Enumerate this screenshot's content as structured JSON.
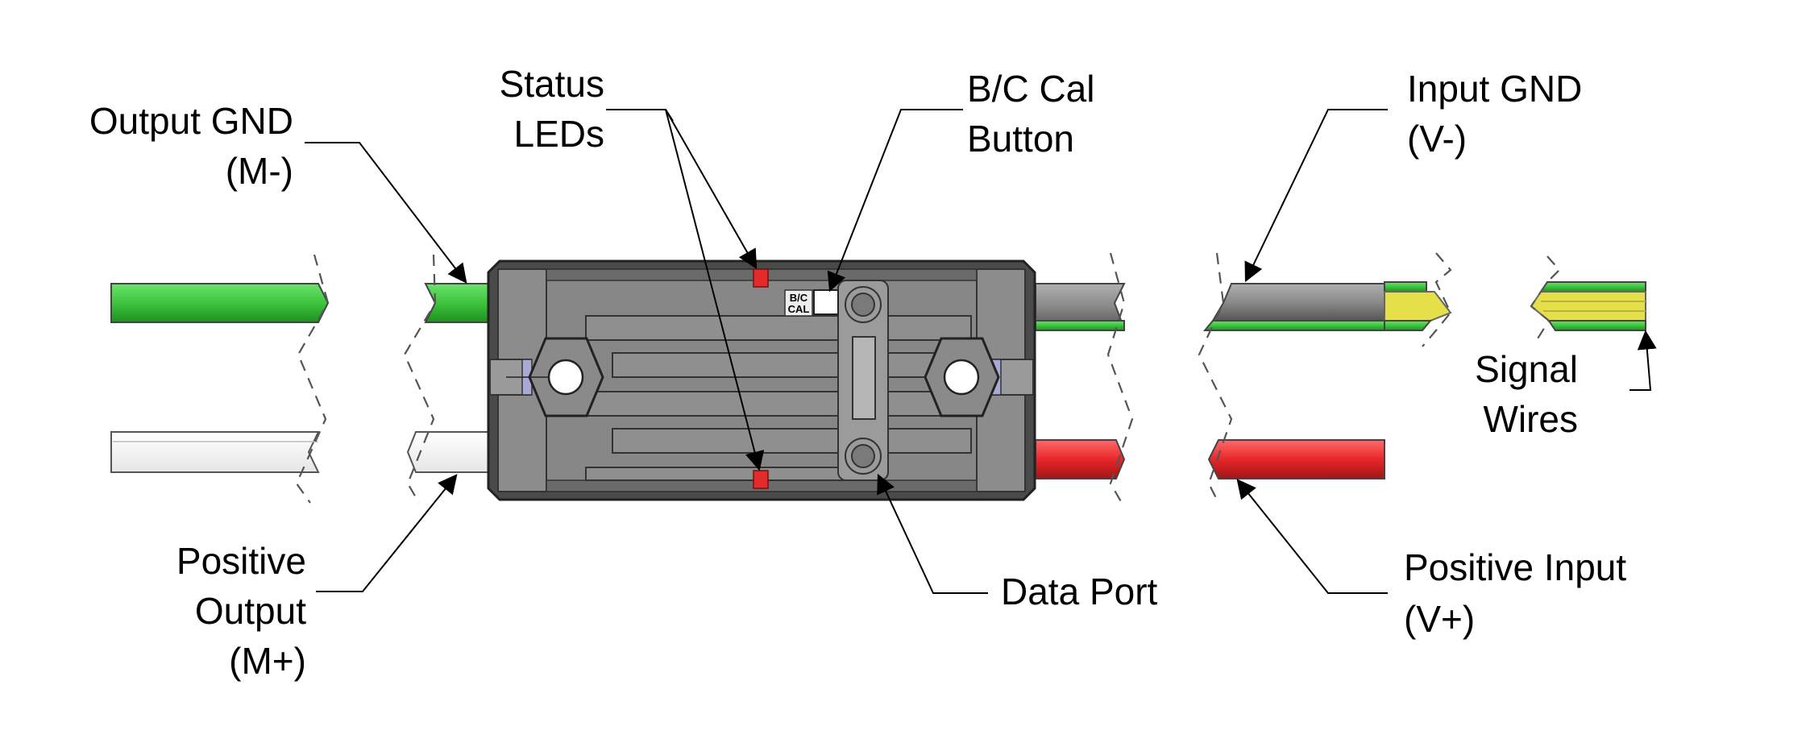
{
  "labels": {
    "output_gnd": [
      "Output GND",
      "(M-)"
    ],
    "status_leds": [
      "Status",
      "LEDs"
    ],
    "bc_cal_button": [
      "B/C Cal",
      "Button"
    ],
    "input_gnd": [
      "Input GND",
      "(V-)"
    ],
    "signal_wires": [
      "Signal",
      "Wires"
    ],
    "positive_output": [
      "Positive",
      "Output",
      "(M+)"
    ],
    "data_port": "Data Port",
    "positive_input": [
      "Positive Input",
      "(V+)"
    ],
    "device_marking": [
      "B/C",
      "CAL"
    ]
  },
  "colors": {
    "gnd_wire": "#3ec43e",
    "positive_output_wire": "#ffffff",
    "positive_input_wire": "#e8262a",
    "input_gnd_wire": "#8a8a8a",
    "signal_wire_stripe": "#e5e04a",
    "housing": "#7d7d7d",
    "housing_dark": "#4a4a4a",
    "led": "#e32b2b"
  },
  "icons": {
    "mounting_hole_left": "hex-nut-icon",
    "mounting_hole_right": "hex-nut-icon",
    "data_port": "screw-icon"
  }
}
